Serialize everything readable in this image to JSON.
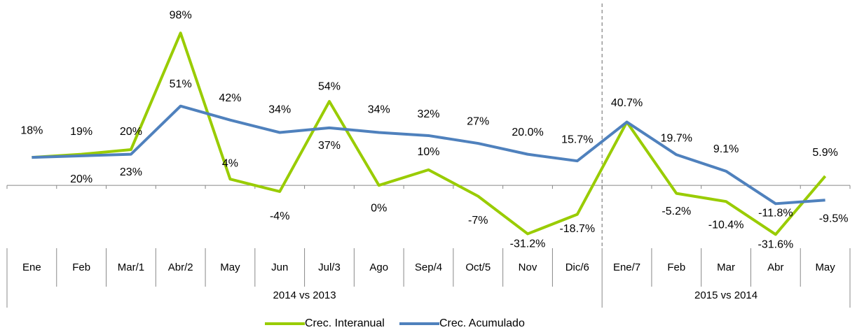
{
  "chart_data": {
    "type": "line",
    "categories": [
      "Ene",
      "Feb",
      "Mar/1",
      "Abr/2",
      "May",
      "Jun",
      "Jul/3",
      "Ago",
      "Sep/4",
      "Oct/5",
      "Nov",
      "Dic/6",
      "Ene/7",
      "Feb",
      "Mar",
      "Abr",
      "May"
    ],
    "groups": [
      {
        "label": "2014 vs 2013",
        "span": 12
      },
      {
        "label": "2015 vs 2014",
        "span": 5
      }
    ],
    "series": [
      {
        "name": "Crec. Interanual",
        "color": "#99cc00",
        "values": [
          18,
          20,
          23,
          98,
          4,
          -4,
          54,
          0,
          10,
          -7,
          -31.2,
          -18.7,
          40.7,
          -5.2,
          -10.4,
          -31.6,
          5.9
        ],
        "value_labels": [
          "18%",
          "20%",
          "23%",
          "98%",
          "4%",
          "-4%",
          "54%",
          "0%",
          "10%",
          "-7%",
          "-31.2%",
          "-18.7%",
          null,
          "-5.2%",
          "-10.4%",
          "-31.6%",
          "5.9%"
        ]
      },
      {
        "name": "Crec. Acumulado",
        "color": "#4f81bd",
        "values": [
          18,
          19,
          20,
          51,
          42,
          34,
          37,
          34,
          32,
          27,
          20.0,
          15.7,
          40.7,
          19.7,
          9.1,
          -11.8,
          -9.5
        ],
        "value_labels": [
          null,
          "19%",
          "20%",
          "51%",
          "42%",
          "34%",
          "37%",
          "34%",
          "32%",
          "27%",
          "20.0%",
          "15.7%",
          "40.7%",
          "19.7%",
          "9.1%",
          "-11.8%",
          "-9.5%"
        ]
      }
    ],
    "ylim": [
      -40,
      108
    ]
  }
}
